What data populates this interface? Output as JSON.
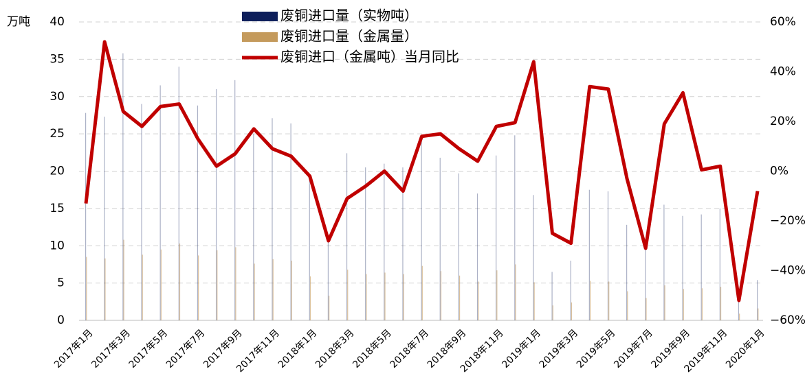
{
  "chart_data": {
    "type": "bar-line",
    "y_axis_label": "万吨",
    "categories": [
      "2017年1月",
      null,
      "2017年3月",
      null,
      "2017年5月",
      null,
      "2017年7月",
      null,
      "2017年9月",
      null,
      "2017年11月",
      null,
      "2018年1月",
      null,
      "2018年3月",
      null,
      "2018年5月",
      null,
      "2018年7月",
      null,
      "2018年9月",
      null,
      "2018年11月",
      null,
      "2019年1月",
      null,
      "2019年3月",
      null,
      "2019年5月",
      null,
      "2019年7月",
      null,
      "2019年9月",
      null,
      "2019年11月",
      null,
      "2020年1月"
    ],
    "series": [
      {
        "name": "废铜进口量（实物吨）",
        "type": "bar",
        "color": "#0e1f5b",
        "values": [
          27.8,
          27.3,
          35.8,
          29,
          31.5,
          34,
          28.8,
          31,
          32.2,
          25,
          27.1,
          26.4,
          19.5,
          11,
          22.4,
          20.5,
          21,
          20.5,
          24,
          21.8,
          19.7,
          17,
          22.1,
          24.8,
          16.8,
          6.5,
          8,
          17.5,
          17.3,
          12.8,
          10,
          15.5,
          14,
          14.2,
          15,
          3,
          5.4
        ]
      },
      {
        "name": "废铜进口量（金属量）",
        "type": "bar",
        "color": "#c49a5c",
        "values": [
          8.5,
          8.3,
          10.8,
          8.8,
          9.5,
          10.3,
          8.7,
          9.4,
          9.8,
          7.6,
          8.2,
          8,
          5.9,
          3.3,
          6.8,
          6.2,
          6.4,
          6.2,
          7.3,
          6.6,
          6,
          5.2,
          6.7,
          7.5,
          5.1,
          2,
          2.4,
          5.3,
          5.2,
          3.9,
          3,
          4.7,
          4.2,
          4.3,
          4.5,
          0.9,
          1.6
        ]
      },
      {
        "name": "废铜进口（金属吨）当月同比",
        "type": "line",
        "axis": "y2",
        "color": "#c00000",
        "values": [
          -13,
          52,
          24,
          18,
          26,
          27,
          13,
          2,
          7,
          17,
          9,
          6,
          -2,
          -28,
          -11,
          -6,
          0,
          -8,
          14,
          15,
          9,
          4,
          18,
          19.5,
          44,
          -25,
          -29,
          34,
          33,
          -3,
          -31,
          19,
          31.5,
          0.5,
          2,
          -52,
          -8
        ]
      }
    ],
    "ylim": [
      0,
      40
    ],
    "yticks": [
      0,
      5,
      10,
      15,
      20,
      25,
      30,
      35,
      40
    ],
    "y2lim": [
      -60,
      60
    ],
    "y2ticks": [
      {
        "value": -60,
        "label": "−60%"
      },
      {
        "value": -40,
        "label": "−40%"
      },
      {
        "value": -20,
        "label": "−20%"
      },
      {
        "value": 0,
        "label": "0%"
      },
      {
        "value": 20,
        "label": "20%"
      },
      {
        "value": 40,
        "label": "40%"
      },
      {
        "value": 60,
        "label": "60%"
      }
    ],
    "grid": true
  }
}
